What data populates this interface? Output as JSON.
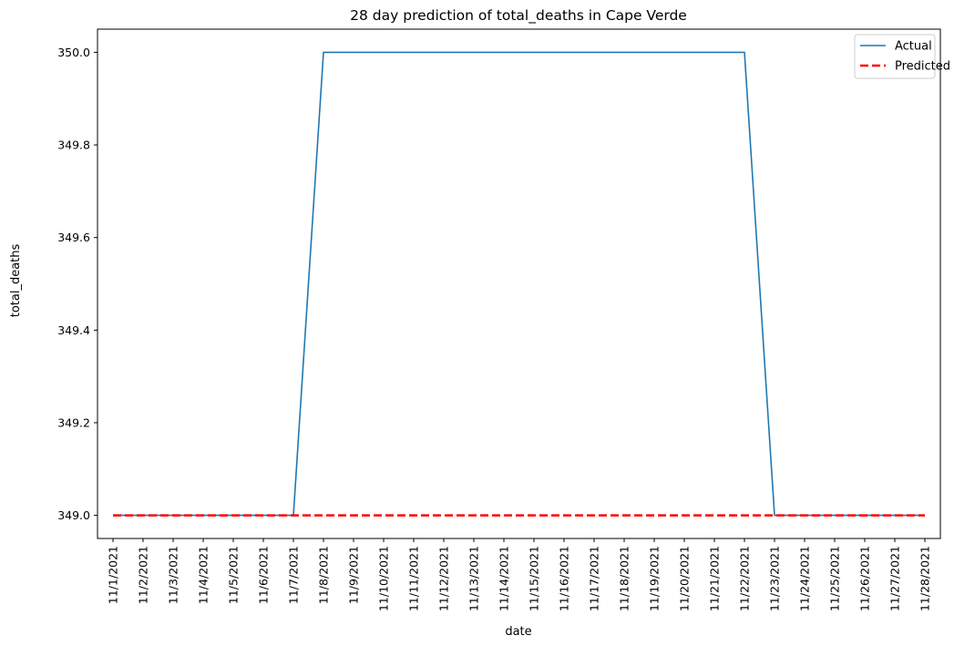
{
  "chart_data": {
    "type": "line",
    "title": "28 day prediction of total_deaths in Cape Verde",
    "xlabel": "date",
    "ylabel": "total_deaths",
    "x": [
      "11/1/2021",
      "11/2/2021",
      "11/3/2021",
      "11/4/2021",
      "11/5/2021",
      "11/6/2021",
      "11/7/2021",
      "11/8/2021",
      "11/9/2021",
      "11/10/2021",
      "11/11/2021",
      "11/12/2021",
      "11/13/2021",
      "11/14/2021",
      "11/15/2021",
      "11/16/2021",
      "11/17/2021",
      "11/18/2021",
      "11/19/2021",
      "11/20/2021",
      "11/21/2021",
      "11/22/2021",
      "11/23/2021",
      "11/24/2021",
      "11/25/2021",
      "11/26/2021",
      "11/27/2021",
      "11/28/2021"
    ],
    "yticks": [
      "349.0",
      "349.2",
      "349.4",
      "349.6",
      "349.8",
      "350.0"
    ],
    "ylim": [
      348.95,
      350.05
    ],
    "legend_position": "top-right",
    "grid": false,
    "series": [
      {
        "name": "Actual",
        "color": "#1f77b4",
        "style": "solid",
        "values": [
          349,
          349,
          349,
          349,
          349,
          349,
          349,
          350,
          350,
          350,
          350,
          350,
          350,
          350,
          350,
          350,
          350,
          350,
          350,
          350,
          350,
          350,
          349,
          349,
          349,
          349,
          349,
          349
        ]
      },
      {
        "name": "Predicted",
        "color": "#ff0000",
        "style": "dashed",
        "values": [
          349,
          349,
          349,
          349,
          349,
          349,
          349,
          349,
          349,
          349,
          349,
          349,
          349,
          349,
          349,
          349,
          349,
          349,
          349,
          349,
          349,
          349,
          349,
          349,
          349,
          349,
          349,
          349
        ]
      }
    ]
  }
}
